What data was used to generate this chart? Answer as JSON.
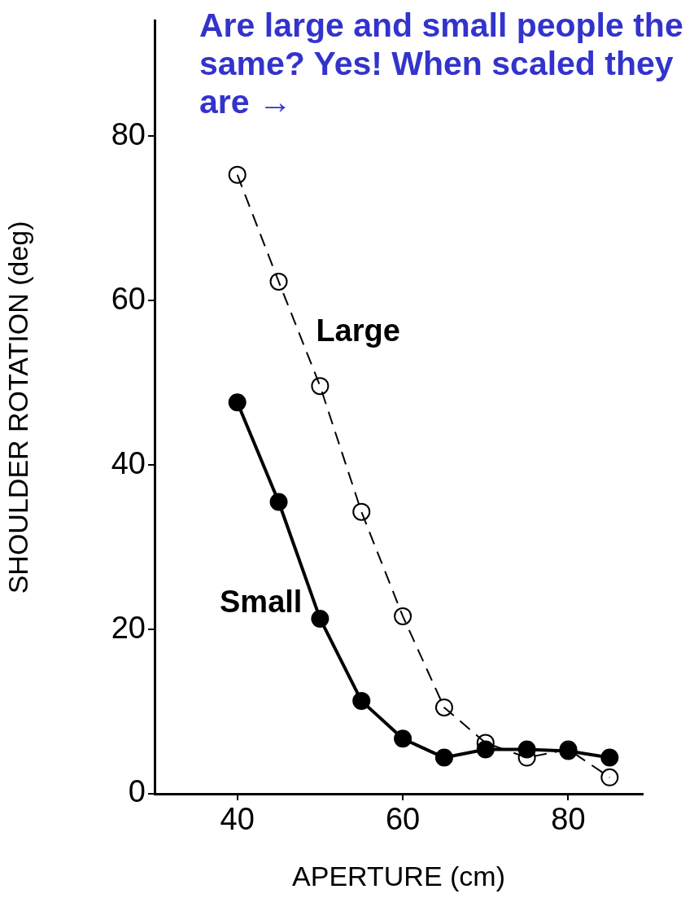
{
  "chart_data": {
    "type": "line",
    "title": "Are large and small people the same? Yes! When scaled they are →",
    "xlabel": "APERTURE (cm)",
    "ylabel": "SHOULDER ROTATION (deg)",
    "xlim": [
      30,
      89
    ],
    "xticks": [
      40,
      60,
      80
    ],
    "ylim": [
      0,
      94
    ],
    "yticks": [
      0,
      20,
      40,
      60,
      80
    ],
    "grid": false,
    "legend": false,
    "marker": "circle",
    "series": [
      {
        "name": "Large",
        "color": "#000000",
        "line_style": "dashed",
        "x": [
          40,
          45,
          50,
          55,
          60,
          65,
          70,
          75,
          80,
          85
        ],
        "values": [
          75.3,
          62.3,
          49.6,
          34.3,
          21.6,
          10.5,
          6.2,
          4.4,
          5.4,
          2.0
        ]
      },
      {
        "name": "Small",
        "color": "#000000",
        "line_style": "solid",
        "x": [
          40,
          45,
          50,
          55,
          60,
          65,
          70,
          75,
          80,
          85
        ],
        "values": [
          47.6,
          35.5,
          21.3,
          11.3,
          6.7,
          4.4,
          5.4,
          5.4,
          5.2,
          4.4
        ]
      }
    ]
  }
}
